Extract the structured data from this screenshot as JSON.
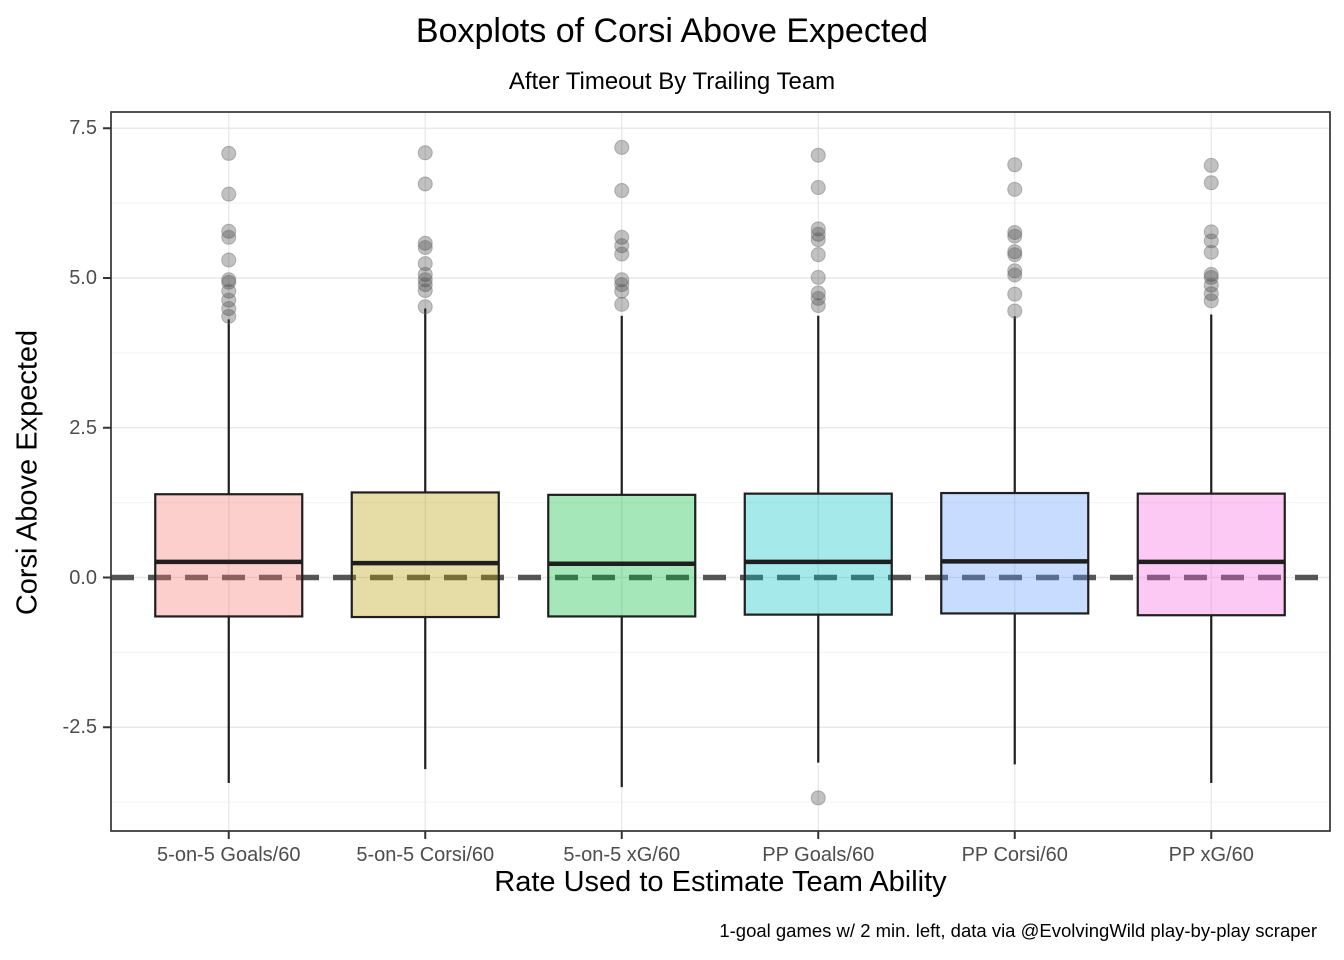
{
  "title": "Boxplots of Corsi Above Expected",
  "subtitle": "After Timeout By Trailing Team",
  "caption": "1-goal games w/ 2 min. left, data via @EvolvingWild play-by-play scraper",
  "x_axis_label": "Rate Used to Estimate Team Ability",
  "y_axis_label": "Corsi Above Expected",
  "colors": {
    "box_border": "#1f1f1f",
    "median_line": "#1f1f1f",
    "whisker": "#1f1f1f",
    "reference_line": "#555555",
    "grid_major": "#e8e8e8",
    "grid_minor": "#f2f2f2",
    "panel_border": "#333333",
    "tick_mark": "#333333",
    "tick_label": "#4d4d4d",
    "outlier_fill": "#3f3f3f",
    "panel_background": "#ffffff"
  },
  "chart_data": {
    "type": "boxplot",
    "title": "Boxplots of Corsi Above Expected",
    "subtitle": "After Timeout By Trailing Team",
    "caption": "1-goal games w/ 2 min. left, data via @EvolvingWild play-by-play scraper",
    "xlabel": "Rate Used to Estimate Team Ability",
    "ylabel": "Corsi Above Expected",
    "ylim": [
      -4.23,
      7.77
    ],
    "y_ticks": [
      7.5,
      5.0,
      2.5,
      0.0,
      -2.5
    ],
    "y_tick_labels": [
      "7.5",
      "5.0",
      "2.5",
      "0.0",
      "-2.5"
    ],
    "y_minor_ticks": [
      6.25,
      3.75,
      1.25,
      -1.25,
      -3.75
    ],
    "grid": true,
    "reference_line_y": 0.0,
    "reference_line_style": "dashed",
    "legend_position": "none",
    "categories": [
      "5-on-5 Goals/60",
      "5-on-5 Corsi/60",
      "5-on-5 xG/60",
      "PP Goals/60",
      "PP Corsi/60",
      "PP xG/60"
    ],
    "fill_opacity": 0.35,
    "series": [
      {
        "category": "5-on-5 Goals/60",
        "fill": "#F8766D",
        "q1": -0.65,
        "median": 0.26,
        "q3": 1.39,
        "whisker_low": -3.43,
        "whisker_high": 4.31,
        "outliers_high": [
          7.08,
          6.4,
          5.78,
          5.68,
          5.3,
          4.97,
          4.93,
          4.78,
          4.63,
          4.49,
          4.36
        ],
        "outliers_low": []
      },
      {
        "category": "5-on-5 Corsi/60",
        "fill": "#B79F00",
        "q1": -0.66,
        "median": 0.24,
        "q3": 1.42,
        "whisker_low": -3.2,
        "whisker_high": 4.49,
        "outliers_high": [
          7.09,
          6.57,
          5.58,
          5.51,
          5.24,
          5.06,
          4.97,
          4.89,
          4.79,
          4.52
        ],
        "outliers_low": []
      },
      {
        "category": "5-on-5 xG/60",
        "fill": "#00BA38",
        "q1": -0.65,
        "median": 0.23,
        "q3": 1.38,
        "whisker_low": -3.5,
        "whisker_high": 4.37,
        "outliers_high": [
          7.18,
          6.46,
          5.68,
          5.54,
          5.4,
          4.97,
          4.89,
          4.78,
          4.56
        ],
        "outliers_low": []
      },
      {
        "category": "PP Goals/60",
        "fill": "#00BFC4",
        "q1": -0.62,
        "median": 0.26,
        "q3": 1.4,
        "whisker_low": -3.09,
        "whisker_high": 4.37,
        "outliers_high": [
          7.05,
          6.51,
          5.82,
          5.73,
          5.64,
          5.39,
          5.01,
          4.75,
          4.66,
          4.54
        ],
        "outliers_low": [
          -3.68
        ]
      },
      {
        "category": "PP Corsi/60",
        "fill": "#619CFF",
        "q1": -0.6,
        "median": 0.27,
        "q3": 1.41,
        "whisker_low": -3.12,
        "whisker_high": 4.36,
        "outliers_high": [
          6.89,
          6.48,
          5.76,
          5.7,
          5.44,
          5.39,
          5.12,
          5.05,
          4.73,
          4.45
        ],
        "outliers_low": []
      },
      {
        "category": "PP xG/60",
        "fill": "#F564E3",
        "q1": -0.63,
        "median": 0.26,
        "q3": 1.4,
        "whisker_low": -3.43,
        "whisker_high": 4.39,
        "outliers_high": [
          6.88,
          6.59,
          5.77,
          5.62,
          5.43,
          5.06,
          5.01,
          4.88,
          4.74,
          4.62
        ],
        "outliers_low": []
      }
    ]
  }
}
